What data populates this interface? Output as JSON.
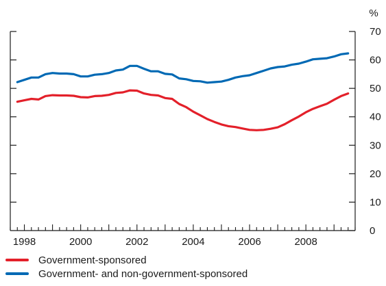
{
  "chart_data": {
    "type": "line",
    "title": "",
    "xlabel": "",
    "ylabel": "",
    "yunit": "%",
    "xlim": [
      1997.5,
      2009.75
    ],
    "ylim": [
      0,
      70
    ],
    "yticks": [
      0,
      10,
      20,
      30,
      40,
      50,
      60,
      70
    ],
    "xtick_labels": [
      "1998",
      "2000",
      "2002",
      "2004",
      "2006",
      "2008"
    ],
    "xtick_positions": [
      1998,
      2000,
      2002,
      2004,
      2006,
      2008
    ],
    "grid": false,
    "legend": "bottom-left",
    "series": [
      {
        "name": "Government-sponsored",
        "color": "#e3202a",
        "x": [
          1997.75,
          1998.0,
          1998.25,
          1998.5,
          1998.75,
          1999.0,
          1999.25,
          1999.5,
          1999.75,
          2000.0,
          2000.25,
          2000.5,
          2000.75,
          2001.0,
          2001.25,
          2001.5,
          2001.75,
          2002.0,
          2002.25,
          2002.5,
          2002.75,
          2003.0,
          2003.25,
          2003.5,
          2003.75,
          2004.0,
          2004.25,
          2004.5,
          2004.75,
          2005.0,
          2005.25,
          2005.5,
          2005.75,
          2006.0,
          2006.25,
          2006.5,
          2006.75,
          2007.0,
          2007.25,
          2007.5,
          2007.75,
          2008.0,
          2008.25,
          2008.5,
          2008.75,
          2009.0,
          2009.25,
          2009.5
        ],
        "values": [
          45.3,
          45.8,
          46.3,
          46.1,
          47.3,
          47.6,
          47.5,
          47.5,
          47.4,
          46.9,
          46.8,
          47.3,
          47.4,
          47.7,
          48.4,
          48.6,
          49.3,
          49.2,
          48.2,
          47.7,
          47.5,
          46.6,
          46.3,
          44.5,
          43.4,
          41.8,
          40.5,
          39.2,
          38.2,
          37.3,
          36.7,
          36.4,
          35.9,
          35.4,
          35.3,
          35.4,
          35.8,
          36.3,
          37.4,
          38.8,
          40.1,
          41.6,
          42.8,
          43.7,
          44.6,
          46.0,
          47.3,
          48.2
        ]
      },
      {
        "name": "Government- and non-government-sponsored",
        "color": "#0069b4",
        "x": [
          1997.75,
          1998.0,
          1998.25,
          1998.5,
          1998.75,
          1999.0,
          1999.25,
          1999.5,
          1999.75,
          2000.0,
          2000.25,
          2000.5,
          2000.75,
          2001.0,
          2001.25,
          2001.5,
          2001.75,
          2002.0,
          2002.25,
          2002.5,
          2002.75,
          2003.0,
          2003.25,
          2003.5,
          2003.75,
          2004.0,
          2004.25,
          2004.5,
          2004.75,
          2005.0,
          2005.25,
          2005.5,
          2005.75,
          2006.0,
          2006.25,
          2006.5,
          2006.75,
          2007.0,
          2007.25,
          2007.5,
          2007.75,
          2008.0,
          2008.25,
          2008.5,
          2008.75,
          2009.0,
          2009.25,
          2009.5
        ],
        "values": [
          52.2,
          53.0,
          53.8,
          53.8,
          55.0,
          55.4,
          55.2,
          55.2,
          55.0,
          54.2,
          54.2,
          54.8,
          55.0,
          55.4,
          56.3,
          56.6,
          57.9,
          57.9,
          56.9,
          56.0,
          56.0,
          55.1,
          54.9,
          53.5,
          53.2,
          52.6,
          52.5,
          52.0,
          52.2,
          52.4,
          53.0,
          53.8,
          54.3,
          54.6,
          55.4,
          56.2,
          57.0,
          57.5,
          57.7,
          58.3,
          58.7,
          59.4,
          60.2,
          60.4,
          60.6,
          61.2,
          62.0,
          62.3
        ]
      }
    ]
  }
}
